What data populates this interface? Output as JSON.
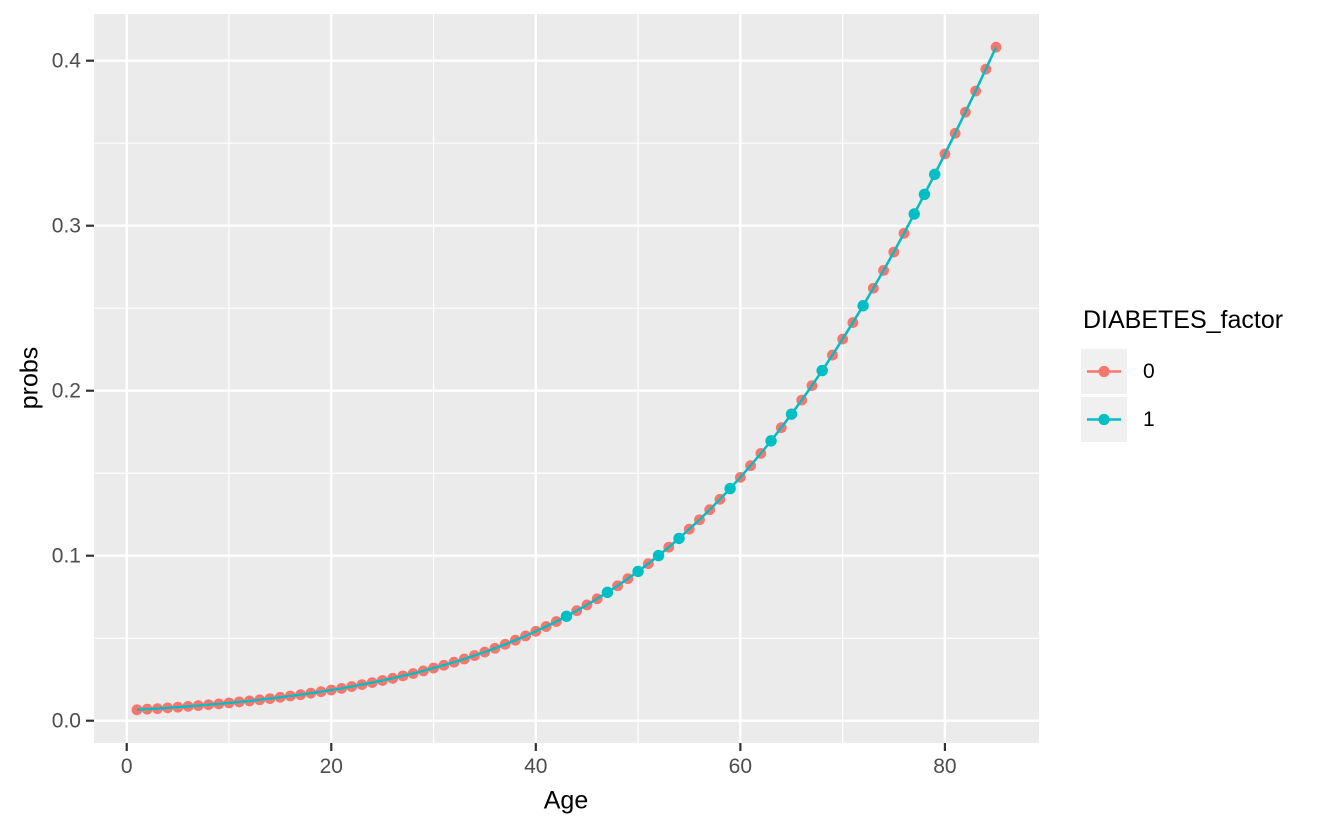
{
  "chart_data": {
    "type": "line",
    "title": "",
    "xlabel": "Age",
    "ylabel": "probs",
    "x_ticks": [
      0,
      20,
      40,
      60,
      80
    ],
    "x_tick_labels": [
      "0",
      "20",
      "40",
      "60",
      "80"
    ],
    "y_ticks": [
      0.0,
      0.1,
      0.2,
      0.3,
      0.4
    ],
    "y_tick_labels": [
      "0.0",
      "0.1",
      "0.2",
      "0.3",
      "0.4"
    ],
    "xlim": [
      -3.2,
      89.2
    ],
    "ylim": [
      -0.0135,
      0.4283
    ],
    "grid": {
      "major": true,
      "minor": true
    },
    "legend": {
      "title": "DIABETES_factor",
      "position": "right",
      "entries": [
        {
          "label": "0",
          "color": "#F8766D"
        },
        {
          "label": "1",
          "color": "#00BFC4"
        }
      ]
    },
    "x": [
      1,
      2,
      3,
      4,
      5,
      6,
      7,
      8,
      9,
      10,
      11,
      12,
      13,
      14,
      15,
      16,
      17,
      18,
      19,
      20,
      21,
      22,
      23,
      24,
      25,
      26,
      27,
      28,
      29,
      30,
      31,
      32,
      33,
      34,
      35,
      36,
      37,
      38,
      39,
      40,
      41,
      42,
      43,
      44,
      45,
      46,
      47,
      48,
      49,
      50,
      51,
      52,
      53,
      54,
      55,
      56,
      57,
      58,
      59,
      60,
      61,
      62,
      63,
      64,
      65,
      66,
      67,
      68,
      69,
      70,
      71,
      72,
      73,
      74,
      75,
      76,
      77,
      78,
      79,
      80,
      81,
      82,
      83,
      84,
      85
    ],
    "series": [
      {
        "name": "0",
        "color": "#F8766D",
        "values": [
          0.0066,
          0.007,
          0.0073,
          0.0078,
          0.0082,
          0.0087,
          0.0092,
          0.0097,
          0.0102,
          0.0108,
          0.0114,
          0.012,
          0.0127,
          0.0134,
          0.0142,
          0.015,
          0.0158,
          0.0167,
          0.0176,
          0.0186,
          0.0196,
          0.0207,
          0.0219,
          0.0231,
          0.0244,
          0.0257,
          0.0272,
          0.0286,
          0.0302,
          0.0319,
          0.0336,
          0.0355,
          0.0374,
          0.0395,
          0.0416,
          0.0439,
          0.0463,
          0.0488,
          0.0514,
          0.0542,
          0.0571,
          0.0601,
          0.0633,
          0.0667,
          0.0702,
          0.0739,
          0.0778,
          0.0818,
          0.0861,
          0.0905,
          0.0952,
          0.1001,
          0.1052,
          0.1105,
          0.1161,
          0.1218,
          0.1279,
          0.1342,
          0.1407,
          0.1475,
          0.1546,
          0.162,
          0.1696,
          0.1776,
          0.1858,
          0.1943,
          0.2031,
          0.2122,
          0.2216,
          0.2313,
          0.2413,
          0.2515,
          0.2621,
          0.2729,
          0.284,
          0.2954,
          0.3071,
          0.319,
          0.3311,
          0.3435,
          0.356,
          0.3688,
          0.3816,
          0.3949,
          0.4082
        ]
      },
      {
        "name": "1",
        "color": "#00BFC4",
        "values": [
          0.0066,
          0.007,
          0.0073,
          0.0078,
          0.0082,
          0.0087,
          0.0092,
          0.0097,
          0.0102,
          0.0108,
          0.0114,
          0.012,
          0.0127,
          0.0134,
          0.0142,
          0.015,
          0.0158,
          0.0167,
          0.0176,
          0.0186,
          0.0196,
          0.0207,
          0.0219,
          0.0231,
          0.0244,
          0.0257,
          0.0272,
          0.0286,
          0.0302,
          0.0319,
          0.0336,
          0.0355,
          0.0374,
          0.0395,
          0.0416,
          0.0439,
          0.0463,
          0.0488,
          0.0514,
          0.0542,
          0.0571,
          0.0601,
          0.0633,
          0.0667,
          0.0702,
          0.0739,
          0.0778,
          0.0818,
          0.0861,
          0.0905,
          0.0952,
          0.1001,
          0.1052,
          0.1105,
          0.1161,
          0.1218,
          0.1279,
          0.1342,
          0.1407,
          0.1475,
          0.1546,
          0.162,
          0.1696,
          0.1776,
          0.1858,
          0.1943,
          0.2031,
          0.2122,
          0.2216,
          0.2313,
          0.2413,
          0.2515,
          0.2621,
          0.2729,
          0.284,
          0.2954,
          0.3071,
          0.319,
          0.3311,
          0.3435,
          0.356,
          0.3688,
          0.3816,
          0.3949,
          0.4082
        ],
        "visible_point_ages": [
          43,
          47,
          50,
          52,
          54,
          59,
          63,
          65,
          68,
          72,
          77,
          78,
          79
        ]
      }
    ],
    "colors": {
      "panel_background": "#EBEBEB",
      "grid": "#FFFFFF",
      "tick_mark": "#333333",
      "tick_text": "#4D4D4D",
      "series0": "#F8766D",
      "series1": "#00BFC4"
    }
  }
}
